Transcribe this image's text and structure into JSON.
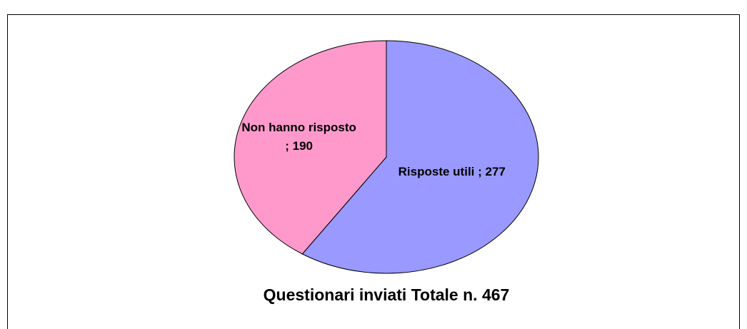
{
  "chart_data": {
    "type": "pie",
    "title": "Questionari inviati Totale n. 467",
    "categories": [
      "Risposte utili",
      "Non hanno risposto"
    ],
    "values": [
      277,
      190
    ],
    "value_labels": [
      "Risposte utili ; 277",
      "Non hanno risposto ; 190"
    ],
    "colors": [
      "#9999ff",
      "#ff99cc"
    ]
  }
}
